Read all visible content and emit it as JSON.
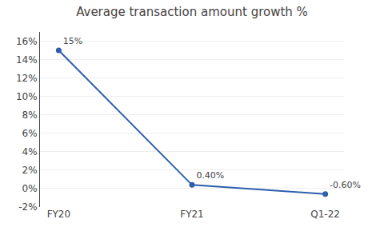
{
  "chart_data": {
    "type": "line",
    "title": "Average transaction amount growth %",
    "categories": [
      "FY20",
      "FY21",
      "Q1-22"
    ],
    "values": [
      15.0,
      0.4,
      -0.6
    ],
    "value_labels": [
      "15%",
      "0.40%",
      "-0.60%"
    ],
    "data_labels": true,
    "color": "#2E5FAC",
    "marker": "circle",
    "ylim": [
      -2,
      17
    ],
    "yticks": [
      {
        "value": -2,
        "label": "-2%"
      },
      {
        "value": 0,
        "label": "0%"
      },
      {
        "value": 2,
        "label": "2%"
      },
      {
        "value": 4,
        "label": "4%"
      },
      {
        "value": 6,
        "label": "6%"
      },
      {
        "value": 8,
        "label": "8%"
      },
      {
        "value": 10,
        "label": "10%"
      },
      {
        "value": 12,
        "label": "12%"
      },
      {
        "value": 14,
        "label": "14%"
      },
      {
        "value": 16,
        "label": "16%"
      }
    ],
    "grid": true
  }
}
